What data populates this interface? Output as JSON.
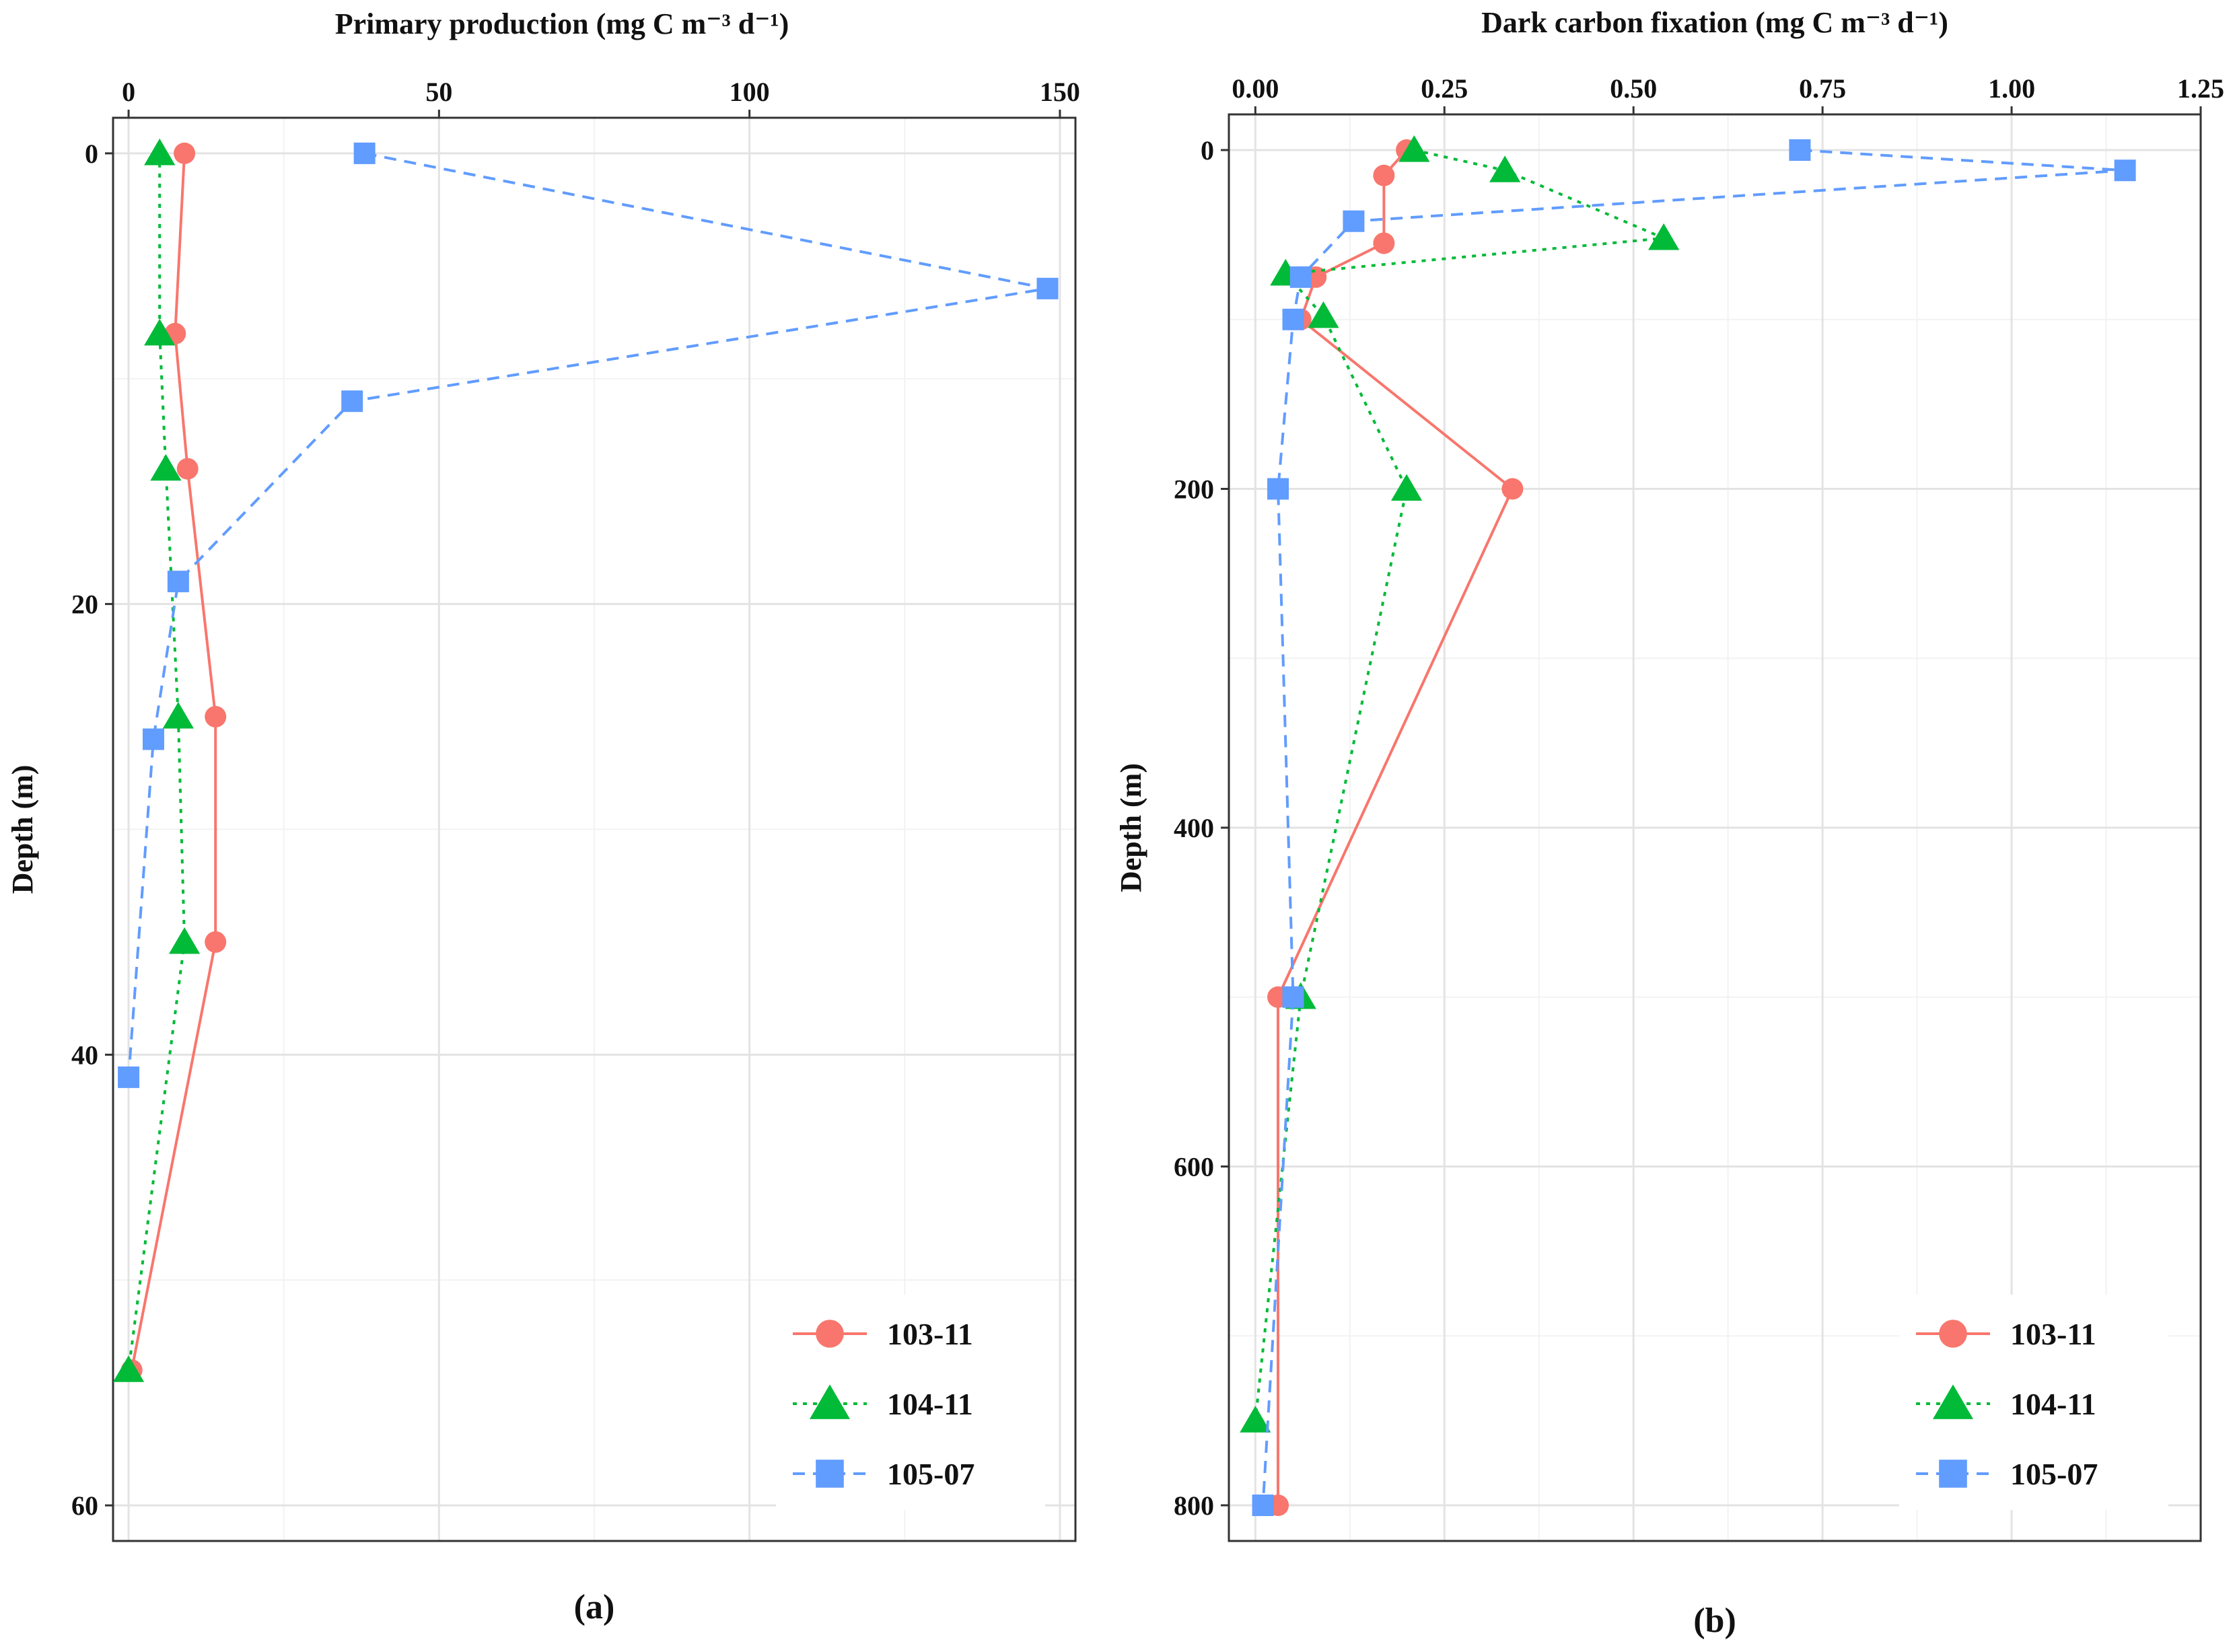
{
  "chart_data": [
    {
      "type": "line",
      "panel_label": "(a)",
      "title": "Primary production (mg C m⁻³ d⁻¹)",
      "xlabel": "Primary production (mg C m⁻³ d⁻¹)",
      "ylabel": "Depth (m)",
      "xlim": [
        -2.5,
        152.5
      ],
      "ylim": [
        0,
        60
      ],
      "y_reversed": true,
      "x_axis_position": "top",
      "x_ticks": [
        0,
        50,
        100,
        150
      ],
      "x_tick_labels": [
        "0",
        "50",
        "100",
        "150"
      ],
      "y_ticks": [
        0,
        20,
        40,
        60
      ],
      "y_tick_labels": [
        "0",
        "20",
        "40",
        "60"
      ],
      "grid": true,
      "legend_position": "bottom-right",
      "series": [
        {
          "name": "103-11",
          "color": "#F8766D",
          "marker": "circle",
          "line_style": "solid",
          "points": [
            [
              9,
              0
            ],
            [
              7.5,
              8
            ],
            [
              9.5,
              14
            ],
            [
              14,
              25
            ],
            [
              14,
              35
            ],
            [
              0.5,
              54
            ]
          ]
        },
        {
          "name": "104-11",
          "color": "#00BA38",
          "marker": "triangle",
          "line_style": "dotted",
          "points": [
            [
              5,
              0
            ],
            [
              5,
              8
            ],
            [
              6,
              14
            ],
            [
              8,
              25
            ],
            [
              9,
              35
            ],
            [
              0,
              54
            ]
          ]
        },
        {
          "name": "105-07",
          "color": "#619CFF",
          "marker": "square",
          "line_style": "dashed",
          "points": [
            [
              38,
              0
            ],
            [
              148,
              6
            ],
            [
              36,
              11
            ],
            [
              8,
              19
            ],
            [
              4,
              26
            ],
            [
              0,
              41
            ]
          ]
        }
      ]
    },
    {
      "type": "line",
      "panel_label": "(b)",
      "title": "Dark carbon fixation (mg C m⁻³ d⁻¹)",
      "xlabel": "Dark carbon fixation (mg C m⁻³ d⁻¹)",
      "ylabel": "Depth (m)",
      "xlim": [
        -0.035,
        1.25
      ],
      "ylim": [
        0,
        800
      ],
      "y_reversed": true,
      "x_axis_position": "top",
      "x_ticks": [
        0,
        0.25,
        0.5,
        0.75,
        1.0,
        1.25
      ],
      "x_tick_labels": [
        "0.00",
        "0.25",
        "0.50",
        "0.75",
        "1.00",
        "1.25"
      ],
      "y_ticks": [
        0,
        200,
        400,
        600,
        800
      ],
      "y_tick_labels": [
        "0",
        "200",
        "400",
        "600",
        "800"
      ],
      "grid": true,
      "legend_position": "bottom-right",
      "series": [
        {
          "name": "103-11",
          "color": "#F8766D",
          "marker": "circle",
          "line_style": "solid",
          "points": [
            [
              0.2,
              0
            ],
            [
              0.17,
              15
            ],
            [
              0.17,
              55
            ],
            [
              0.08,
              75
            ],
            [
              0.06,
              100
            ],
            [
              0.34,
              200
            ],
            [
              0.03,
              500
            ],
            [
              0.03,
              800
            ]
          ]
        },
        {
          "name": "104-11",
          "color": "#00BA38",
          "marker": "triangle",
          "line_style": "dotted",
          "points": [
            [
              0.21,
              0
            ],
            [
              0.33,
              12
            ],
            [
              0.54,
              52
            ],
            [
              0.04,
              73
            ],
            [
              0.09,
              98
            ],
            [
              0.2,
              200
            ],
            [
              0.06,
              500
            ],
            [
              0.0,
              750
            ]
          ]
        },
        {
          "name": "105-07",
          "color": "#619CFF",
          "marker": "square",
          "line_style": "dashed",
          "points": [
            [
              0.72,
              0
            ],
            [
              1.15,
              12
            ],
            [
              0.13,
              42
            ],
            [
              0.06,
              75
            ],
            [
              0.05,
              100
            ],
            [
              0.03,
              200
            ],
            [
              0.05,
              500
            ],
            [
              0.01,
              800
            ]
          ]
        }
      ]
    }
  ]
}
